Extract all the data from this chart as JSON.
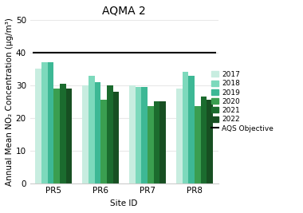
{
  "title": "AQMA 2",
  "xlabel": "Site ID",
  "ylabel": "Annual Mean NO₂ Concentration (μg/m³)",
  "sites": [
    "PR5",
    "PR6",
    "PR7",
    "PR8"
  ],
  "years": [
    "2017",
    "2018",
    "2019",
    "2020",
    "2021",
    "2022"
  ],
  "values": {
    "PR5": [
      35,
      37,
      37,
      29,
      30.5,
      29
    ],
    "PR6": [
      30,
      33,
      31,
      25.5,
      30,
      28
    ],
    "PR7": [
      30,
      29.5,
      29.5,
      23.5,
      25,
      25
    ],
    "PR8": [
      29,
      34,
      33,
      23.5,
      26.5,
      25.5
    ]
  },
  "year_colors": [
    "#c8ede0",
    "#7dd9bc",
    "#3db895",
    "#3a9e50",
    "#1b6b2e",
    "#174f22"
  ],
  "aqs_objective": 40,
  "ylim": [
    0,
    50
  ],
  "yticks": [
    0,
    10,
    20,
    30,
    40,
    50
  ],
  "background_color": "#ffffff",
  "grid_color": "#e8e8e8",
  "title_fontsize": 10,
  "axis_label_fontsize": 7.5,
  "tick_fontsize": 7.5
}
